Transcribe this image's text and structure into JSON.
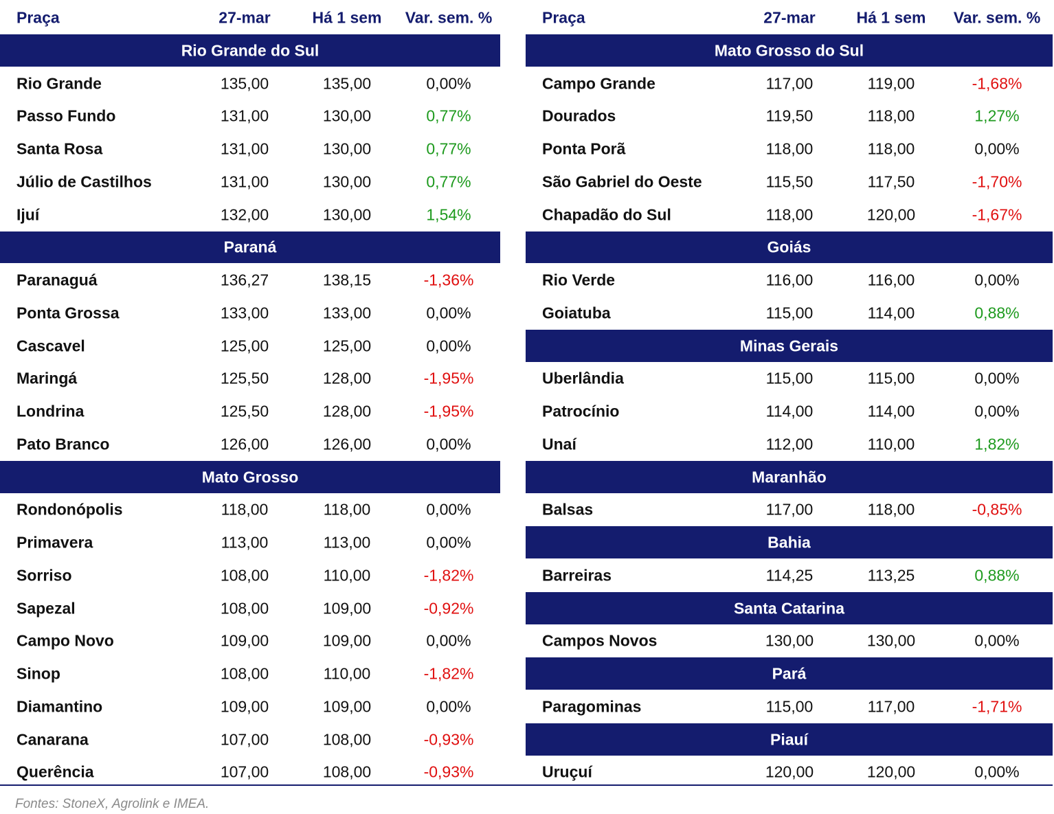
{
  "tables": [
    {
      "columns": [
        "Praça",
        "27-mar",
        "Há 1 sem",
        "Var. sem. %"
      ],
      "sections": [
        {
          "title": "Rio Grande do Sul",
          "rows": [
            [
              "Rio Grande",
              "135,00",
              "135,00",
              "0,00%"
            ],
            [
              "Passo Fundo",
              "131,00",
              "130,00",
              "0,77%"
            ],
            [
              "Santa Rosa",
              "131,00",
              "130,00",
              "0,77%"
            ],
            [
              "Júlio de Castilhos",
              "131,00",
              "130,00",
              "0,77%"
            ],
            [
              "Ijuí",
              "132,00",
              "130,00",
              "1,54%"
            ]
          ]
        },
        {
          "title": "Paraná",
          "rows": [
            [
              "Paranaguá",
              "136,27",
              "138,15",
              "-1,36%"
            ],
            [
              "Ponta Grossa",
              "133,00",
              "133,00",
              "0,00%"
            ],
            [
              "Cascavel",
              "125,00",
              "125,00",
              "0,00%"
            ],
            [
              "Maringá",
              "125,50",
              "128,00",
              "-1,95%"
            ],
            [
              "Londrina",
              "125,50",
              "128,00",
              "-1,95%"
            ],
            [
              "Pato Branco",
              "126,00",
              "126,00",
              "0,00%"
            ]
          ]
        },
        {
          "title": "Mato Grosso",
          "rows": [
            [
              "Rondonópolis",
              "118,00",
              "118,00",
              "0,00%"
            ],
            [
              "Primavera",
              "113,00",
              "113,00",
              "0,00%"
            ],
            [
              "Sorriso",
              "108,00",
              "110,00",
              "-1,82%"
            ],
            [
              "Sapezal",
              "108,00",
              "109,00",
              "-0,92%"
            ],
            [
              "Campo Novo",
              "109,00",
              "109,00",
              "0,00%"
            ],
            [
              "Sinop",
              "108,00",
              "110,00",
              "-1,82%"
            ],
            [
              "Diamantino",
              "109,00",
              "109,00",
              "0,00%"
            ],
            [
              "Canarana",
              "107,00",
              "108,00",
              "-0,93%"
            ],
            [
              "Querência",
              "107,00",
              "108,00",
              "-0,93%"
            ]
          ]
        }
      ]
    },
    {
      "columns": [
        "Praça",
        "27-mar",
        "Há 1 sem",
        "Var. sem. %"
      ],
      "sections": [
        {
          "title": "Mato Grosso do Sul",
          "rows": [
            [
              "Campo Grande",
              "117,00",
              "119,00",
              "-1,68%"
            ],
            [
              "Dourados",
              "119,50",
              "118,00",
              "1,27%"
            ],
            [
              "Ponta Porã",
              "118,00",
              "118,00",
              "0,00%"
            ],
            [
              "São Gabriel do Oeste",
              "115,50",
              "117,50",
              "-1,70%"
            ],
            [
              "Chapadão do Sul",
              "118,00",
              "120,00",
              "-1,67%"
            ]
          ]
        },
        {
          "title": "Goiás",
          "rows": [
            [
              "Rio Verde",
              "116,00",
              "116,00",
              "0,00%"
            ],
            [
              "Goiatuba",
              "115,00",
              "114,00",
              "0,88%"
            ]
          ]
        },
        {
          "title": "Minas Gerais",
          "rows": [
            [
              "Uberlândia",
              "115,00",
              "115,00",
              "0,00%"
            ],
            [
              "Patrocínio",
              "114,00",
              "114,00",
              "0,00%"
            ],
            [
              "Unaí",
              "112,00",
              "110,00",
              "1,82%"
            ]
          ]
        },
        {
          "title": "Maranhão",
          "rows": [
            [
              "Balsas",
              "117,00",
              "118,00",
              "-0,85%"
            ]
          ]
        },
        {
          "title": "Bahia",
          "rows": [
            [
              "Barreiras",
              "114,25",
              "113,25",
              "0,88%"
            ]
          ]
        },
        {
          "title": "Santa Catarina",
          "rows": [
            [
              "Campos Novos",
              "130,00",
              "130,00",
              "0,00%"
            ]
          ]
        },
        {
          "title": "Pará",
          "rows": [
            [
              "Paragominas",
              "115,00",
              "117,00",
              "-1,71%"
            ]
          ]
        },
        {
          "title": "Piauí",
          "rows": [
            [
              "Uruçuí",
              "120,00",
              "120,00",
              "0,00%"
            ]
          ]
        }
      ]
    }
  ],
  "source": "Fontes: StoneX, Agrolink e IMEA.",
  "colors": {
    "header": "#141c6e",
    "positive": "#1e9a1e",
    "negative": "#e01010",
    "zero": "#111111"
  }
}
